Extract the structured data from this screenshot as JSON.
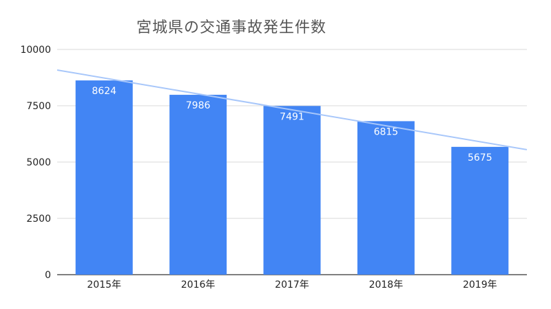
{
  "chart_data": {
    "type": "bar",
    "title": "宮城県の交通事故発生件数",
    "categories": [
      "2015年",
      "2016年",
      "2017年",
      "2018年",
      "2019年"
    ],
    "values": [
      8624,
      7986,
      7491,
      6815,
      5675
    ],
    "xlabel": "",
    "ylabel": "",
    "ylim": [
      0,
      10000
    ],
    "yticks": [
      0,
      2500,
      5000,
      7500,
      10000
    ],
    "grid": true,
    "legend": "none",
    "trendline": "linear",
    "colors": {
      "bar": "#4285f4",
      "trendline": "#a8c7fa",
      "grid": "#d9d9d9",
      "label": "#ffffff"
    }
  }
}
